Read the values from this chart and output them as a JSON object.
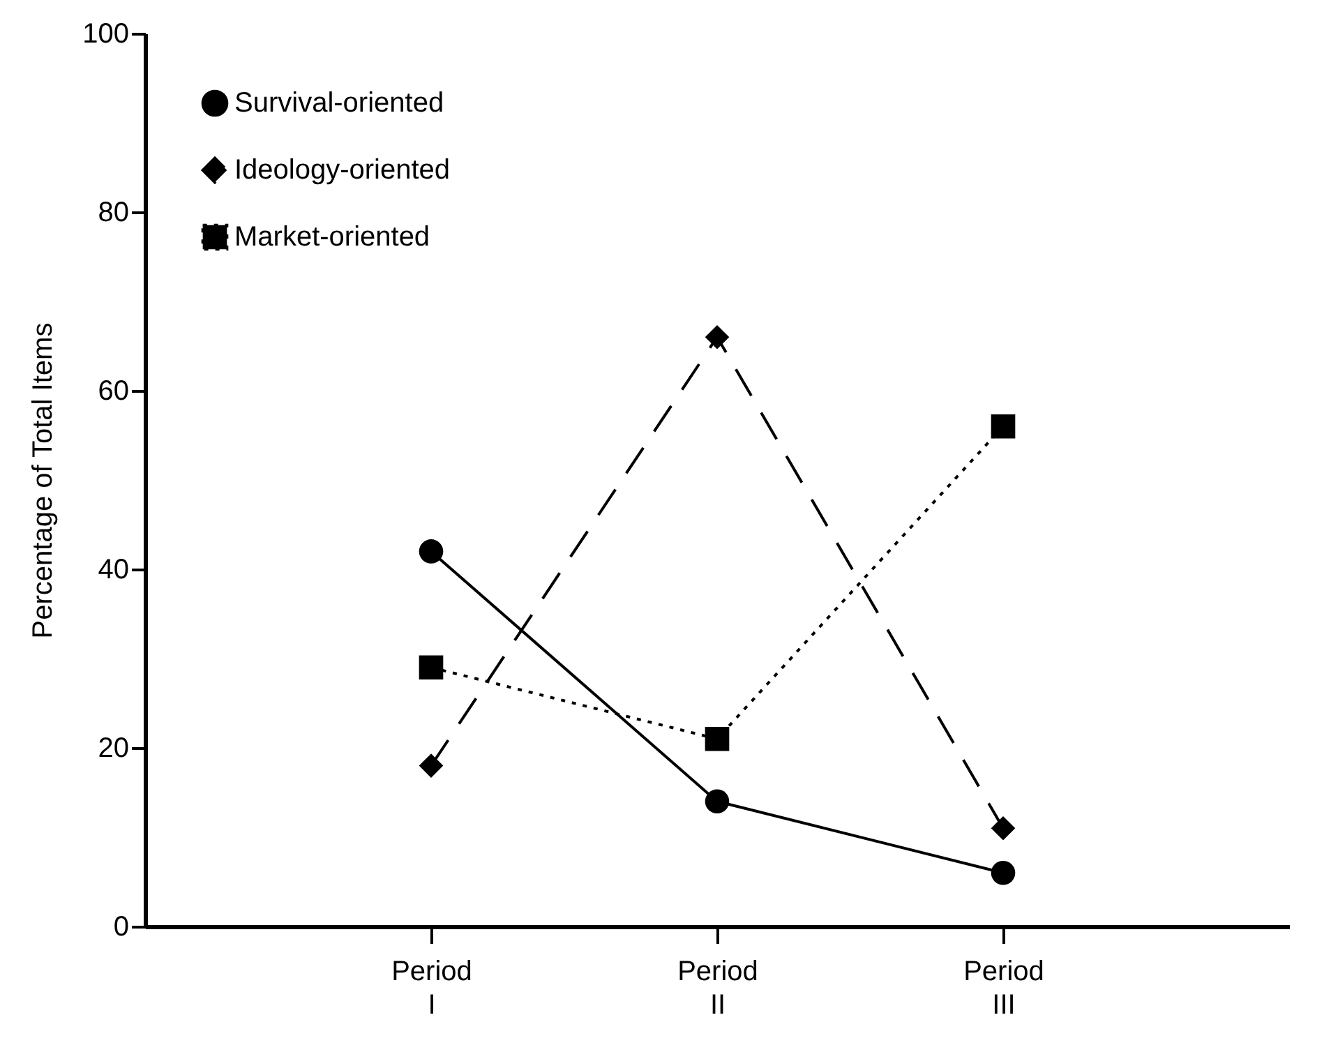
{
  "chart_data": {
    "type": "line",
    "ylabel": "Percentage of Total Items",
    "categories": [
      "Period I",
      "Period II",
      "Period III"
    ],
    "ylim": [
      0,
      100
    ],
    "yticks": [
      0,
      20,
      40,
      60,
      80,
      100
    ],
    "grid": false,
    "legend": "top left",
    "series": [
      {
        "name": "Survival-oriented",
        "color": "#000000",
        "values": [
          42,
          14,
          6
        ],
        "marker": "circle",
        "line_style": "solid"
      },
      {
        "name": "Ideology-oriented",
        "color": "#000000",
        "values": [
          18,
          66,
          11
        ],
        "marker": "diamond",
        "line_style": "dashed"
      },
      {
        "name": "Market-oriented",
        "color": "#000000",
        "values": [
          29,
          21,
          56
        ],
        "marker": "square",
        "line_style": "dotted"
      }
    ]
  }
}
